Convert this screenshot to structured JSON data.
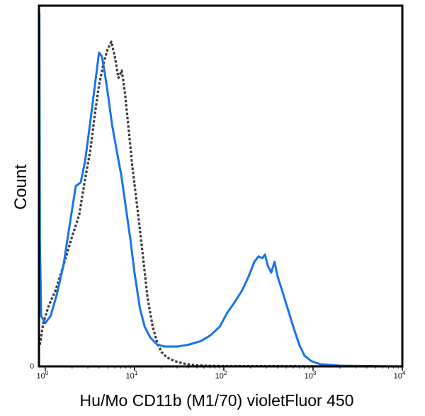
{
  "chart_data": {
    "type": "line",
    "title": "",
    "xlabel": "Hu/Mo CD11b (M1/70) violetFluor 450",
    "ylabel": "Count",
    "x_scale": "log",
    "xlim": [
      0.85,
      10000
    ],
    "ylim": [
      0,
      100
    ],
    "grid": false,
    "legend": "none",
    "x_ticks": [
      {
        "value": 1,
        "base": "10",
        "exp": "0"
      },
      {
        "value": 10,
        "base": "10",
        "exp": "1"
      },
      {
        "value": 100,
        "base": "10",
        "exp": "2"
      },
      {
        "value": 1000,
        "base": "10",
        "exp": "3"
      },
      {
        "value": 10000,
        "base": "10",
        "exp": "4"
      }
    ],
    "y_ticks": [
      {
        "value": 0,
        "label": "0"
      }
    ],
    "series": [
      {
        "style": "dashed",
        "color": "#3c3c3c",
        "points": [
          [
            0.87,
            6
          ],
          [
            0.95,
            12
          ],
          [
            1.1,
            17
          ],
          [
            1.3,
            21
          ],
          [
            1.6,
            28
          ],
          [
            2.0,
            36
          ],
          [
            2.4,
            42
          ],
          [
            2.8,
            52
          ],
          [
            3.2,
            60
          ],
          [
            3.6,
            70
          ],
          [
            4.0,
            78
          ],
          [
            4.5,
            84
          ],
          [
            5.0,
            88
          ],
          [
            5.5,
            90
          ],
          [
            6.0,
            86
          ],
          [
            6.6,
            80
          ],
          [
            7.2,
            82
          ],
          [
            7.8,
            76
          ],
          [
            8.5,
            67
          ],
          [
            9.5,
            55
          ],
          [
            11,
            42
          ],
          [
            12.5,
            30
          ],
          [
            14,
            19
          ],
          [
            16,
            11
          ],
          [
            18,
            6.5
          ],
          [
            20,
            4
          ],
          [
            23,
            2.5
          ],
          [
            28,
            1.5
          ],
          [
            35,
            0.8
          ],
          [
            45,
            0.4
          ],
          [
            60,
            0.2
          ],
          [
            100,
            0.1
          ],
          [
            1000,
            0.05
          ],
          [
            10000,
            0
          ]
        ]
      },
      {
        "style": "solid",
        "color": "#1a73e8",
        "points": [
          [
            0.86,
            98
          ],
          [
            0.87,
            35
          ],
          [
            0.9,
            14
          ],
          [
            1.0,
            12
          ],
          [
            1.15,
            14
          ],
          [
            1.35,
            20
          ],
          [
            1.6,
            28
          ],
          [
            1.9,
            40
          ],
          [
            2.2,
            50
          ],
          [
            2.5,
            51
          ],
          [
            2.8,
            57
          ],
          [
            3.2,
            68
          ],
          [
            3.6,
            78
          ],
          [
            4.0,
            87
          ],
          [
            4.3,
            86
          ],
          [
            4.6,
            82
          ],
          [
            5.0,
            76
          ],
          [
            5.6,
            67
          ],
          [
            6.3,
            60
          ],
          [
            7.1,
            53
          ],
          [
            8.0,
            44
          ],
          [
            9.0,
            35
          ],
          [
            10,
            26
          ],
          [
            11.5,
            16
          ],
          [
            13,
            11
          ],
          [
            15,
            8
          ],
          [
            18,
            6
          ],
          [
            22,
            5.5
          ],
          [
            30,
            5.5
          ],
          [
            40,
            6
          ],
          [
            55,
            7
          ],
          [
            70,
            8.5
          ],
          [
            90,
            11
          ],
          [
            110,
            15
          ],
          [
            130,
            17.5
          ],
          [
            160,
            21
          ],
          [
            190,
            25
          ],
          [
            220,
            29
          ],
          [
            245,
            30.5
          ],
          [
            270,
            30
          ],
          [
            290,
            31
          ],
          [
            310,
            28
          ],
          [
            340,
            26
          ],
          [
            370,
            29
          ],
          [
            400,
            25
          ],
          [
            450,
            21
          ],
          [
            520,
            16
          ],
          [
            600,
            11
          ],
          [
            700,
            6
          ],
          [
            800,
            3
          ],
          [
            950,
            1.5
          ],
          [
            1200,
            0.6
          ],
          [
            2000,
            0.2
          ],
          [
            10000,
            0
          ]
        ]
      }
    ]
  }
}
